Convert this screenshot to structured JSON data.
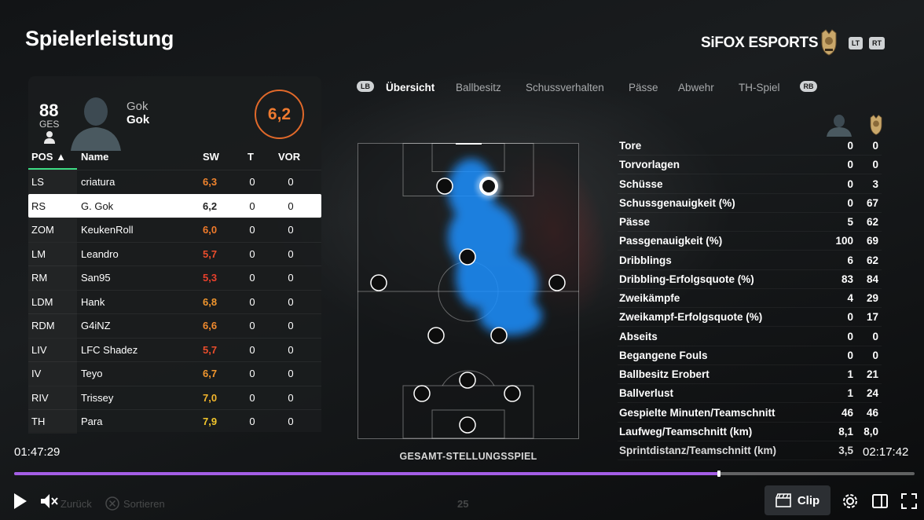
{
  "header": {
    "title": "Spielerleistung",
    "club_name": "SiFOX ESPORTS",
    "chip_lt": "LT",
    "chip_rt": "RT"
  },
  "player": {
    "overall": "88",
    "overall_label": "GES",
    "name_line1": "Gok",
    "name_line2": "Gok",
    "rating": "6,2",
    "rating_color": "#e1692a"
  },
  "table": {
    "headers": {
      "pos": "POS ▲",
      "name": "Name",
      "sw": "SW",
      "t": "T",
      "vor": "VOR"
    },
    "rows": [
      {
        "pos": "LS",
        "name": "criatura",
        "sw": "6,3",
        "t": "0",
        "vor": "0",
        "sw_color": "#f0842e",
        "selected": false
      },
      {
        "pos": "RS",
        "name": "G. Gok",
        "sw": "6,2",
        "t": "0",
        "vor": "0",
        "sw_color": "#222222",
        "selected": true
      },
      {
        "pos": "ZOM",
        "name": "KeukenRoll",
        "sw": "6,0",
        "t": "0",
        "vor": "0",
        "sw_color": "#f07a2a",
        "selected": false
      },
      {
        "pos": "LM",
        "name": "Leandro",
        "sw": "5,7",
        "t": "0",
        "vor": "0",
        "sw_color": "#ea4d2c",
        "selected": false
      },
      {
        "pos": "RM",
        "name": "San95",
        "sw": "5,3",
        "t": "0",
        "vor": "0",
        "sw_color": "#e8402c",
        "selected": false
      },
      {
        "pos": "LDM",
        "name": "Hank",
        "sw": "6,8",
        "t": "0",
        "vor": "0",
        "sw_color": "#f0962e",
        "selected": false
      },
      {
        "pos": "RDM",
        "name": "G4iNZ",
        "sw": "6,6",
        "t": "0",
        "vor": "0",
        "sw_color": "#f08a2e",
        "selected": false
      },
      {
        "pos": "LIV",
        "name": "LFC Shadez",
        "sw": "5,7",
        "t": "0",
        "vor": "0",
        "sw_color": "#ea4d2c",
        "selected": false
      },
      {
        "pos": "IV",
        "name": "Teyo",
        "sw": "6,7",
        "t": "0",
        "vor": "0",
        "sw_color": "#f0962e",
        "selected": false
      },
      {
        "pos": "RIV",
        "name": "Trissey",
        "sw": "7,0",
        "t": "0",
        "vor": "0",
        "sw_color": "#f2b52c",
        "selected": false
      },
      {
        "pos": "TH",
        "name": "Para",
        "sw": "7,9",
        "t": "0",
        "vor": "0",
        "sw_color": "#f2c62c",
        "selected": false
      }
    ]
  },
  "tabs": {
    "lb": "LB",
    "rb": "RB",
    "items": [
      {
        "label": "Übersicht",
        "active": true
      },
      {
        "label": "Ballbesitz",
        "active": false
      },
      {
        "label": "Schussverhalten",
        "active": false
      },
      {
        "label": "Pässe",
        "active": false
      },
      {
        "label": "Abwehr",
        "active": false
      },
      {
        "label": "TH-Spiel",
        "active": false
      }
    ]
  },
  "pitch": {
    "caption": "GESAMT-STELLUNGSSPIEL",
    "heatmap_color": "#1e90ff"
  },
  "stats": [
    {
      "label": "Tore",
      "player": "0",
      "team": "0"
    },
    {
      "label": "Torvorlagen",
      "player": "0",
      "team": "0"
    },
    {
      "label": "Schüsse",
      "player": "0",
      "team": "3"
    },
    {
      "label": "Schussgenauigkeit (%)",
      "player": "0",
      "team": "67"
    },
    {
      "label": "Pässe",
      "player": "5",
      "team": "62"
    },
    {
      "label": "Passgenauigkeit (%)",
      "player": "100",
      "team": "69"
    },
    {
      "label": "Dribblings",
      "player": "6",
      "team": "62"
    },
    {
      "label": "Dribbling-Erfolgsquote (%)",
      "player": "83",
      "team": "84"
    },
    {
      "label": "Zweikämpfe",
      "player": "4",
      "team": "29"
    },
    {
      "label": "Zweikampf-Erfolgsquote (%)",
      "player": "0",
      "team": "17"
    },
    {
      "label": "Abseits",
      "player": "0",
      "team": "0"
    },
    {
      "label": "Begangene Fouls",
      "player": "0",
      "team": "0"
    },
    {
      "label": "Ballbesitz Erobert",
      "player": "1",
      "team": "21"
    },
    {
      "label": "Ballverlust",
      "player": "1",
      "team": "24"
    },
    {
      "label": "Gespielte Minuten/Teamschnitt",
      "player": "46",
      "team": "46"
    },
    {
      "label": "Laufweg/Teamschnitt (km)",
      "player": "8,1",
      "team": "8,0"
    },
    {
      "label": "Sprintdistanz/Teamschnitt (km)",
      "player": "3,5",
      "team": ""
    }
  ],
  "video": {
    "time_elapsed": "01:47:29",
    "time_total": "02:17:42",
    "progress_percent": 78.3,
    "accent_color": "#a45ee6",
    "clip_label": "Clip",
    "back_label": "Zurück",
    "sort_label": "Sortieren",
    "page_num": "25"
  }
}
